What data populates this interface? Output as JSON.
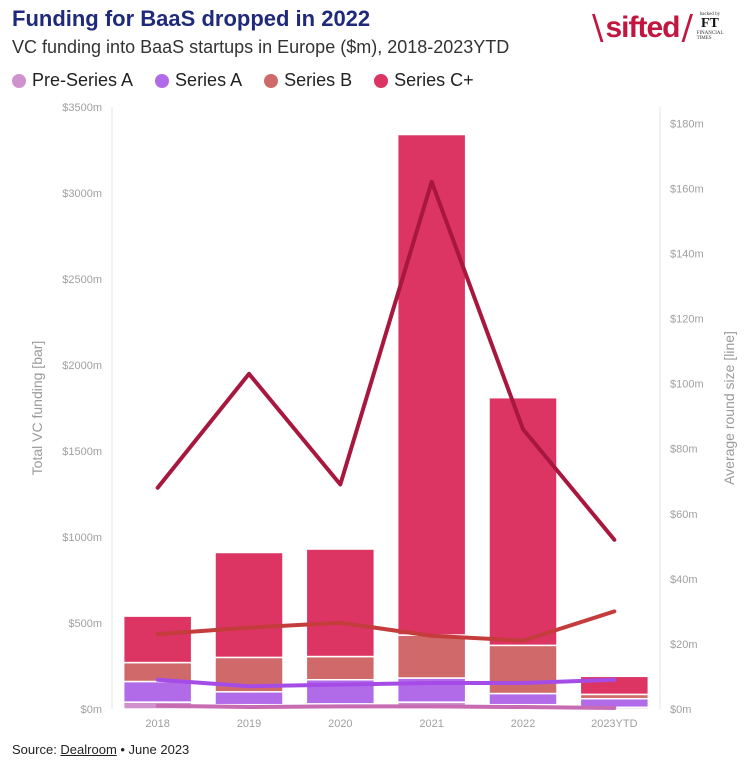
{
  "header": {
    "title": "Funding for BaaS dropped in 2022",
    "subtitle": "VC funding into BaaS startups in Europe ($m), 2018-2023YTD"
  },
  "logo": {
    "brand": "sifted",
    "ft_small": "backed by",
    "ft_big": "FT",
    "ft_caption": "FINANCIAL TIMES"
  },
  "source": {
    "prefix": "Source: ",
    "link": "Dealroom",
    "suffix": " • June 2023"
  },
  "chart_data": {
    "type": "bar",
    "categories": [
      "2018",
      "2019",
      "2020",
      "2021",
      "2022",
      "2023YTD"
    ],
    "stacked": true,
    "series": [
      {
        "name": "Pre-Series A",
        "color": "#cf92cf",
        "values": [
          40,
          25,
          30,
          40,
          25,
          10
        ],
        "line_values": [
          1.0,
          0.6,
          0.8,
          0.8,
          0.6,
          0.3
        ]
      },
      {
        "name": "Series A",
        "color": "#b26be8",
        "values": [
          120,
          75,
          140,
          140,
          65,
          50
        ],
        "line_values": [
          9,
          7,
          7.5,
          8,
          8,
          9
        ]
      },
      {
        "name": "Series B",
        "color": "#d06a6a",
        "values": [
          110,
          200,
          135,
          250,
          280,
          25
        ],
        "line_values": [
          23,
          25,
          26.5,
          22.5,
          21,
          30
        ]
      },
      {
        "name": "Series C+",
        "color": "#dc3563",
        "values": [
          270,
          610,
          625,
          2910,
          1440,
          105
        ],
        "line_values": [
          68,
          103,
          69,
          162,
          86,
          52
        ]
      }
    ],
    "ylabel": "Total VC funding [bar]",
    "y2label": "Average round size [line]",
    "ylim": [
      0,
      3500
    ],
    "y2lim": [
      0,
      185
    ],
    "yticks": [
      "$0m",
      "$500m",
      "$1000m",
      "$1500m",
      "$2000m",
      "$2500m",
      "$3000m",
      "$3500m"
    ],
    "y2ticks": [
      "$0m",
      "$20m",
      "$40m",
      "$60m",
      "$80m",
      "$100m",
      "$120m",
      "$140m",
      "$160m",
      "$180m"
    ],
    "line_colors": {
      "Pre-Series A": "#c76cb3",
      "Series A": "#a64ce6",
      "Series B": "#c43c3c",
      "Series C+": "#a8173e"
    },
    "grid": false
  }
}
